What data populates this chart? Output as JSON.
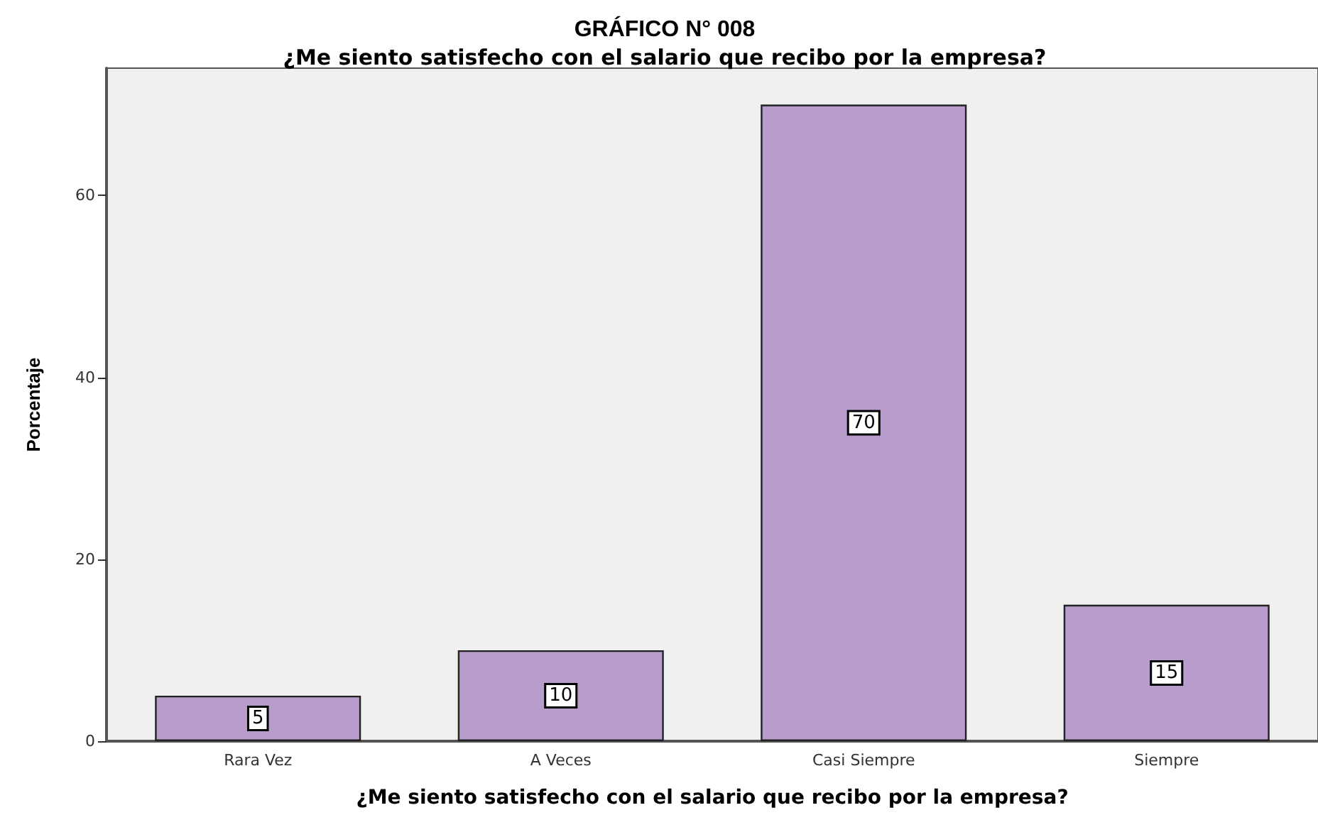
{
  "chart_data": {
    "type": "bar",
    "title": "GRÁFICO N° 008",
    "subtitle": "¿Me siento satisfecho con el salario que recibo por la empresa?",
    "xlabel": "¿Me siento satisfecho con el salario que recibo por la empresa?",
    "ylabel": "Porcentaje",
    "categories": [
      "Rara Vez",
      "A Veces",
      "Casi Siempre",
      "Siempre"
    ],
    "values": [
      5,
      10,
      70,
      15
    ],
    "color": "#b89ccc",
    "ylim": [
      0,
      74
    ],
    "yticks": [
      0,
      20,
      40,
      60
    ],
    "grid": false,
    "data_labels": true
  }
}
